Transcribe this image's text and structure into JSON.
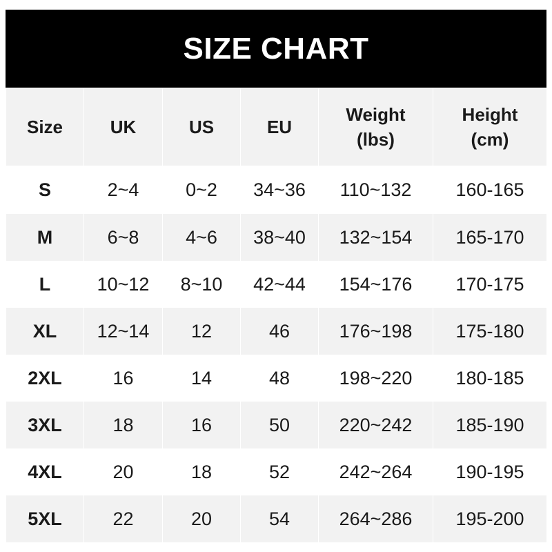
{
  "title": "SIZE CHART",
  "headers": [
    {
      "line1": "Size",
      "line2": ""
    },
    {
      "line1": "UK",
      "line2": ""
    },
    {
      "line1": "US",
      "line2": ""
    },
    {
      "line1": "EU",
      "line2": ""
    },
    {
      "line1": "Weight",
      "line2": "(lbs)"
    },
    {
      "line1": "Height",
      "line2": "(cm)"
    }
  ],
  "rows": [
    [
      "S",
      "2~4",
      "0~2",
      "34~36",
      "110~132",
      "160-165"
    ],
    [
      "M",
      "6~8",
      "4~6",
      "38~40",
      "132~154",
      "165-170"
    ],
    [
      "L",
      "10~12",
      "8~10",
      "42~44",
      "154~176",
      "170-175"
    ],
    [
      "XL",
      "12~14",
      "12",
      "46",
      "176~198",
      "175-180"
    ],
    [
      "2XL",
      "16",
      "14",
      "48",
      "198~220",
      "180-185"
    ],
    [
      "3XL",
      "18",
      "16",
      "50",
      "220~242",
      "185-190"
    ],
    [
      "4XL",
      "20",
      "18",
      "52",
      "242~264",
      "190-195"
    ],
    [
      "5XL",
      "22",
      "20",
      "54",
      "264~286",
      "195-200"
    ]
  ],
  "colors": {
    "banner": "#000000",
    "stripe": "#f2f2f2",
    "text": "#1a1a1a"
  }
}
